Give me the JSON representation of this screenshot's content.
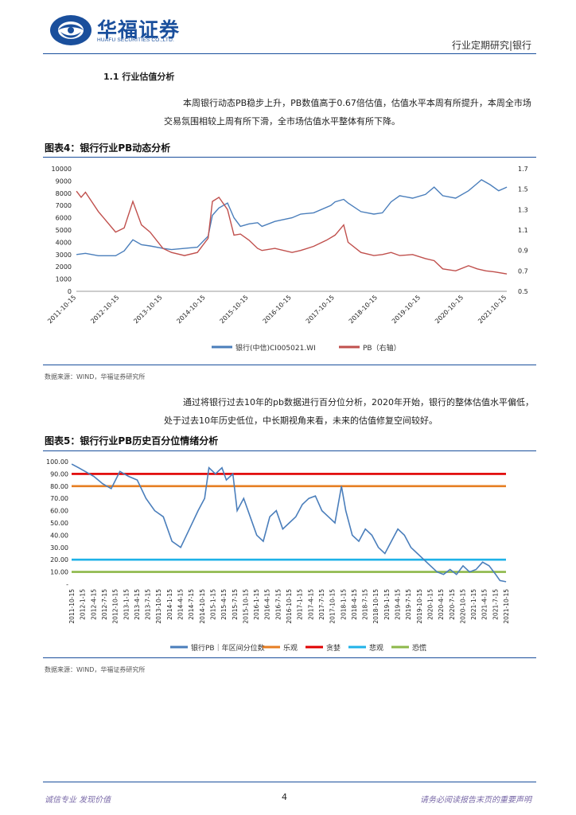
{
  "header": {
    "logo_cn": "华福证券",
    "logo_en": "HUAFU SECURITIES CO.,LTD.",
    "report_type": "行业定期研究|银行"
  },
  "section": {
    "title": "1.1  行业估值分析"
  },
  "paragraphs": {
    "p1": "本周银行动态PB稳步上升，PB数值高于0.67倍估值，估值水平本周有所提升，本周全市场交易氛围相较上周有所下滑，全市场估值水平整体有所下降。",
    "p2": "通过将银行过去10年的pb数据进行百分位分析，2020年开始，银行的整体估值水平偏低，处于过去10年历史低位，中长期视角来看，未来的估值修复空间较好。"
  },
  "figure4": {
    "title": "图表4：银行行业PB动态分析",
    "source": "数据来源：WIND，华福证券研究所"
  },
  "figure5": {
    "title": "图表5：银行行业PB历史百分位情绪分析",
    "source": "数据来源：WIND，华福证券研究所"
  },
  "footer": {
    "left": "诚信专业  发现价值",
    "page": "4",
    "right": "请务必阅读报告末页的重要声明"
  },
  "colors": {
    "brand_blue": "#1a4f9c",
    "series_blue": "#4a7ebb",
    "series_red": "#c0504d",
    "line_neutral": "#e67e22",
    "line_greedy": "#e00000",
    "line_pessimistic": "#1fb2e8",
    "line_panic": "#8db84a"
  },
  "chart_data": [
    {
      "type": "line",
      "x_ticks": [
        "2011-10-15",
        "2012-10-15",
        "2013-10-15",
        "2014-10-15",
        "2015-10-15",
        "2016-10-15",
        "2017-10-15",
        "2018-10-15",
        "2019-10-15",
        "2020-10-15",
        "2021-10-15"
      ],
      "y_left_ticks": [
        "10000",
        "9000",
        "8000",
        "7000",
        "6000",
        "5000",
        "4000",
        "3000",
        "2000",
        "1000",
        "0"
      ],
      "y_left_lim": [
        0,
        10000
      ],
      "y_right_ticks": [
        "1.7",
        "1.5",
        "1.3",
        "1.1",
        "0.9",
        "0.7",
        "0.5"
      ],
      "y_right_lim": [
        0.5,
        1.7
      ],
      "series": [
        {
          "name": "银行(中信)CI005021.WI",
          "axis": "left",
          "x": [
            2011.79,
            2012.0,
            2012.3,
            2012.7,
            2012.9,
            2013.1,
            2013.3,
            2013.5,
            2013.8,
            2014.0,
            2014.3,
            2014.6,
            2014.85,
            2014.95,
            2015.1,
            2015.3,
            2015.45,
            2015.6,
            2015.8,
            2016.0,
            2016.1,
            2016.4,
            2016.8,
            2017.0,
            2017.3,
            2017.7,
            2017.8,
            2018.0,
            2018.1,
            2018.4,
            2018.7,
            2018.9,
            2019.1,
            2019.3,
            2019.6,
            2019.9,
            2020.1,
            2020.3,
            2020.6,
            2020.9,
            2021.1,
            2021.2,
            2021.4,
            2021.6,
            2021.79
          ],
          "values": [
            3000,
            3100,
            2900,
            2900,
            3300,
            4200,
            3800,
            3700,
            3500,
            3400,
            3500,
            3600,
            4500,
            6200,
            6800,
            7200,
            6000,
            5300,
            5500,
            5600,
            5300,
            5700,
            6000,
            6300,
            6400,
            7000,
            7300,
            7500,
            7200,
            6500,
            6300,
            6400,
            7300,
            7800,
            7600,
            7900,
            8500,
            7800,
            7600,
            8200,
            8800,
            9100,
            8700,
            8200,
            8500
          ]
        },
        {
          "name": "PB（右轴）",
          "axis": "right",
          "x": [
            2011.79,
            2011.9,
            2012.0,
            2012.3,
            2012.7,
            2012.9,
            2013.1,
            2013.3,
            2013.5,
            2013.8,
            2014.0,
            2014.3,
            2014.6,
            2014.85,
            2014.95,
            2015.1,
            2015.3,
            2015.45,
            2015.6,
            2015.8,
            2016.0,
            2016.1,
            2016.4,
            2016.8,
            2017.0,
            2017.3,
            2017.6,
            2017.8,
            2018.0,
            2018.1,
            2018.4,
            2018.7,
            2018.9,
            2019.1,
            2019.3,
            2019.6,
            2019.9,
            2020.1,
            2020.3,
            2020.6,
            2020.9,
            2021.1,
            2021.3,
            2021.5,
            2021.79
          ],
          "values": [
            1.48,
            1.42,
            1.47,
            1.28,
            1.08,
            1.12,
            1.38,
            1.15,
            1.08,
            0.92,
            0.88,
            0.85,
            0.88,
            1.02,
            1.38,
            1.42,
            1.3,
            1.05,
            1.06,
            1.0,
            0.92,
            0.9,
            0.92,
            0.88,
            0.9,
            0.94,
            1.0,
            1.05,
            1.15,
            0.98,
            0.88,
            0.85,
            0.86,
            0.88,
            0.85,
            0.86,
            0.82,
            0.8,
            0.72,
            0.7,
            0.75,
            0.72,
            0.7,
            0.69,
            0.67
          ]
        }
      ]
    },
    {
      "type": "line",
      "x_ticks": [
        "2011-10-15",
        "2012-1-15",
        "2012-4-15",
        "2012-7-15",
        "2012-10-15",
        "2013-1-15",
        "2013-4-15",
        "2013-7-15",
        "2013-10-15",
        "2014-1-15",
        "2014-4-15",
        "2014-7-15",
        "2014-10-15",
        "2015-1-15",
        "2015-4-15",
        "2015-7-15",
        "2015-10-15",
        "2016-1-15",
        "2016-4-15",
        "2016-7-15",
        "2016-10-15",
        "2017-1-15",
        "2017-4-15",
        "2017-7-15",
        "2017-10-15",
        "2018-1-15",
        "2018-4-15",
        "2018-7-15",
        "2018-10-15",
        "2019-1-15",
        "2019-4-15",
        "2019-7-15",
        "2019-10-15",
        "2020-1-15",
        "2020-4-15",
        "2020-7-15",
        "2020-10-15",
        "2021-1-15",
        "2021-4-15",
        "2021-7-15",
        "2021-10-15"
      ],
      "y_ticks": [
        "100.00",
        "90.00",
        "80.00",
        "70.00",
        "60.00",
        "50.00",
        "40.00",
        "30.00",
        "20.00",
        "10.00",
        "-"
      ],
      "ylim": [
        0,
        100
      ],
      "series": [
        {
          "name": "银行PB｜年区间分位数",
          "x": [
            2011.79,
            2011.95,
            2012.1,
            2012.3,
            2012.5,
            2012.7,
            2012.9,
            2013.1,
            2013.3,
            2013.5,
            2013.7,
            2013.9,
            2014.1,
            2014.3,
            2014.5,
            2014.7,
            2014.85,
            2014.95,
            2015.1,
            2015.25,
            2015.35,
            2015.5,
            2015.6,
            2015.75,
            2015.9,
            2016.05,
            2016.2,
            2016.35,
            2016.5,
            2016.65,
            2016.8,
            2016.95,
            2017.1,
            2017.25,
            2017.4,
            2017.55,
            2017.7,
            2017.85,
            2018.0,
            2018.1,
            2018.25,
            2018.4,
            2018.55,
            2018.7,
            2018.85,
            2019.0,
            2019.15,
            2019.3,
            2019.45,
            2019.6,
            2019.75,
            2019.9,
            2020.05,
            2020.2,
            2020.35,
            2020.5,
            2020.65,
            2020.8,
            2020.95,
            2021.1,
            2021.25,
            2021.4,
            2021.55,
            2021.65,
            2021.79
          ],
          "values": [
            98,
            95,
            92,
            88,
            82,
            78,
            92,
            88,
            85,
            70,
            60,
            55,
            35,
            30,
            45,
            60,
            70,
            95,
            90,
            95,
            85,
            90,
            60,
            70,
            55,
            40,
            35,
            55,
            60,
            45,
            50,
            55,
            65,
            70,
            72,
            60,
            55,
            50,
            80,
            60,
            40,
            35,
            45,
            40,
            30,
            25,
            35,
            45,
            40,
            30,
            25,
            20,
            15,
            10,
            8,
            12,
            8,
            15,
            10,
            12,
            18,
            15,
            8,
            3,
            2
          ]
        }
      ],
      "reference_lines": [
        {
          "name": "乐观",
          "value": 80
        },
        {
          "name": "贪婪",
          "value": 90
        },
        {
          "name": "悲观",
          "value": 20
        },
        {
          "name": "恐慌",
          "value": 10
        }
      ]
    }
  ]
}
